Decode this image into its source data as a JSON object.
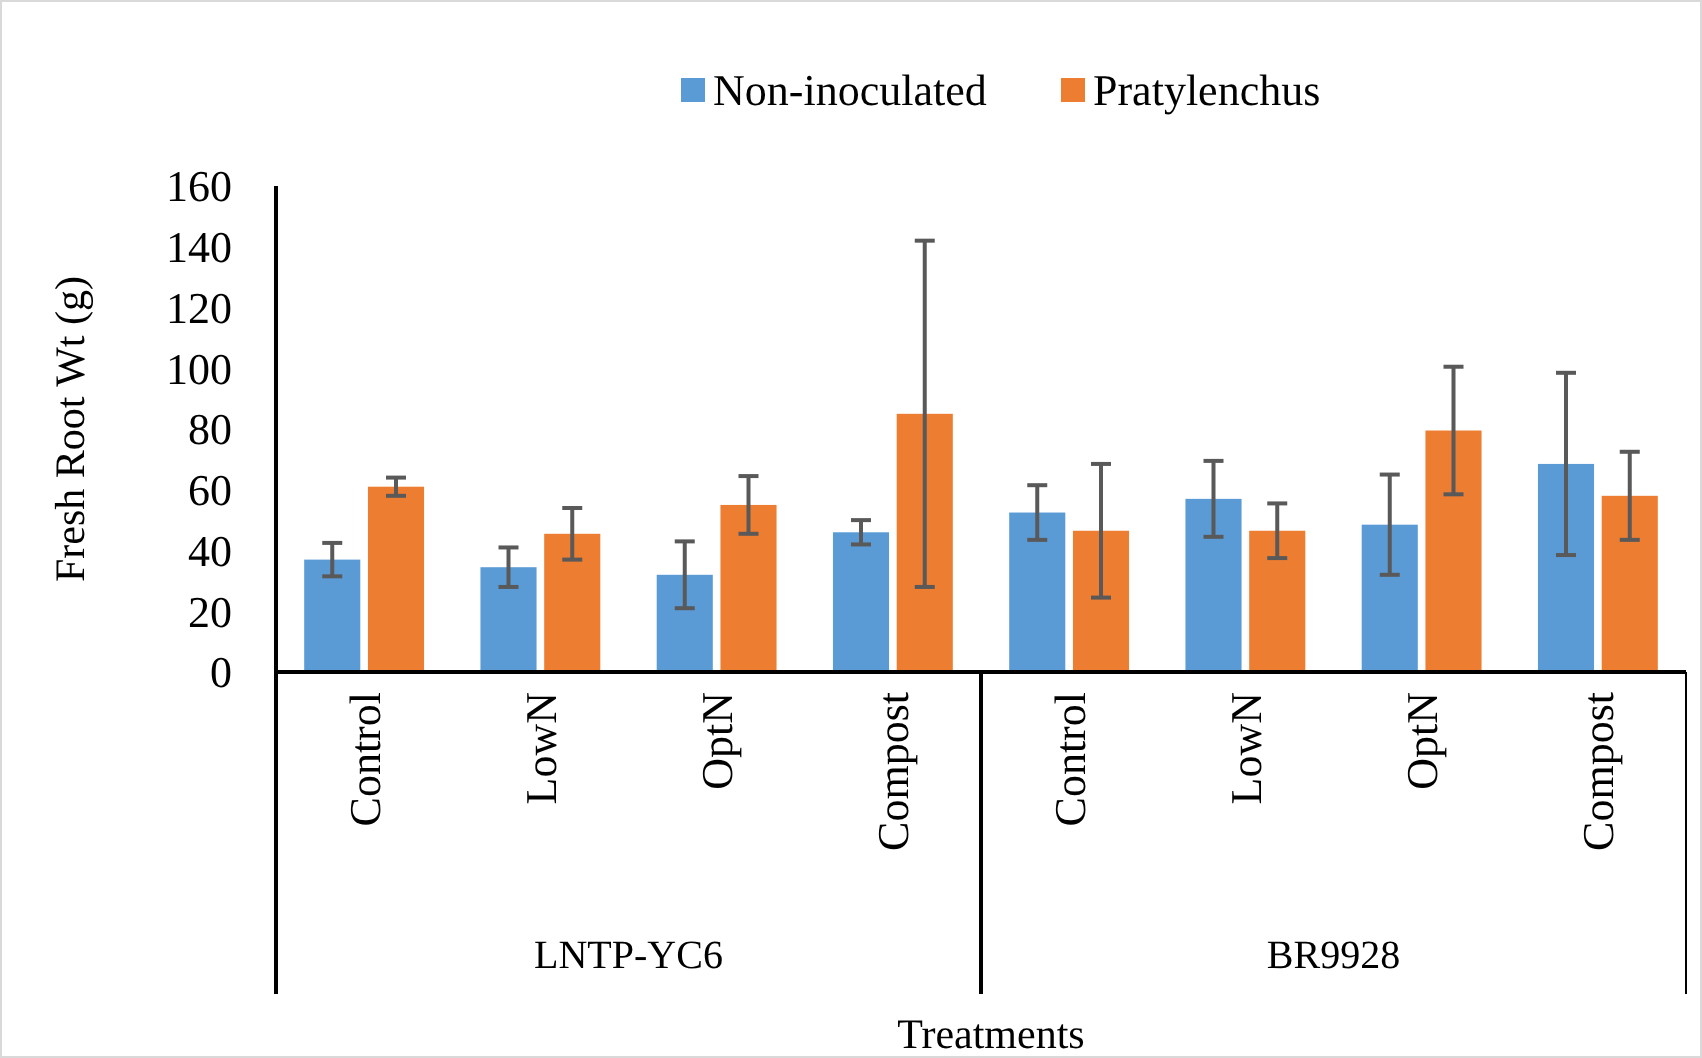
{
  "chart_data": {
    "type": "bar",
    "xlabel": "Treatments",
    "ylabel": "Fresh Root Wt (g)",
    "categories": [
      "Control",
      "LowN",
      "OptN",
      "Compost",
      "Control",
      "LowN",
      "OptN",
      "Compost"
    ],
    "annotations": [
      "LNTP-YC6",
      "BR9928"
    ],
    "series": [
      {
        "name": "Non-inoculated",
        "color": "#5b9bd5",
        "values": [
          37,
          34.5,
          32,
          46,
          52.5,
          57,
          48.5,
          68.5
        ],
        "errors": [
          5.5,
          6.5,
          11,
          4,
          9,
          12.5,
          16.5,
          30
        ]
      },
      {
        "name": "Pratylenchus",
        "color": "#ed7d31",
        "values": [
          61,
          45.5,
          55,
          85,
          46.5,
          46.5,
          79.5,
          58
        ],
        "errors": [
          3,
          8.5,
          9.5,
          57,
          22,
          9,
          21,
          14.5
        ]
      }
    ],
    "ylim": [
      0,
      160
    ],
    "yticks": [
      0,
      20,
      40,
      60,
      80,
      100,
      120,
      140,
      160
    ],
    "grid": false,
    "legend": "top"
  }
}
